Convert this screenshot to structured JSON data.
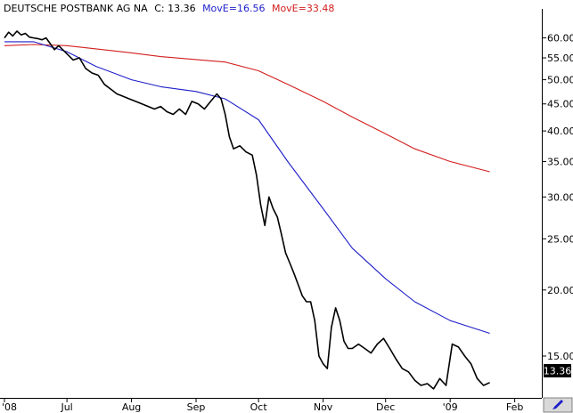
{
  "header": {
    "name": "DEUTSCHE POSTBANK AG NA",
    "close": "C: 13.36",
    "ma_short": "MovE=16.56",
    "ma_long": "MovE=33.48"
  },
  "last_price": "13.36",
  "chart_data": {
    "type": "line",
    "y_scale": "log",
    "ylim": [
      12.5,
      66
    ],
    "grid": false,
    "y_ticks": [
      15,
      20,
      25,
      30,
      35,
      40,
      45,
      50,
      55,
      60
    ],
    "y_tick_labels": [
      "15.00",
      "20.00",
      "25.00",
      "30.00",
      "35.00",
      "40.00",
      "45.00",
      "50.00",
      "55.00",
      "60.00"
    ],
    "xlim": [
      "2008-06-01",
      "2009-02-14"
    ],
    "x_ticks": [
      {
        "date": "2008-06-01",
        "label": "'08"
      },
      {
        "date": "2008-07-01",
        "label": "Jul"
      },
      {
        "date": "2008-08-01",
        "label": "Aug"
      },
      {
        "date": "2008-09-01",
        "label": "Sep"
      },
      {
        "date": "2008-10-01",
        "label": "Oct"
      },
      {
        "date": "2008-11-01",
        "label": "Nov"
      },
      {
        "date": "2008-12-01",
        "label": "Dec"
      },
      {
        "date": "2009-01-01",
        "label": "'09"
      },
      {
        "date": "2009-02-01",
        "label": "Feb"
      }
    ],
    "colors": {
      "price": "#000000",
      "ma_short": "#1e1ec8",
      "ma_long": "#d21e1e",
      "badge": "#000000"
    },
    "series": [
      {
        "name": "DEUTSCHE POSTBANK AG NA",
        "key": "price",
        "x": [
          "2008-06-01",
          "2008-06-03",
          "2008-06-05",
          "2008-06-07",
          "2008-06-09",
          "2008-06-11",
          "2008-06-13",
          "2008-06-15",
          "2008-06-17",
          "2008-06-19",
          "2008-06-21",
          "2008-06-23",
          "2008-06-25",
          "2008-06-27",
          "2008-06-29",
          "2008-07-01",
          "2008-07-04",
          "2008-07-07",
          "2008-07-10",
          "2008-07-13",
          "2008-07-16",
          "2008-07-19",
          "2008-07-22",
          "2008-07-25",
          "2008-07-28",
          "2008-07-31",
          "2008-08-03",
          "2008-08-06",
          "2008-08-09",
          "2008-08-12",
          "2008-08-15",
          "2008-08-18",
          "2008-08-21",
          "2008-08-24",
          "2008-08-27",
          "2008-08-30",
          "2008-09-02",
          "2008-09-05",
          "2008-09-08",
          "2008-09-11",
          "2008-09-13",
          "2008-09-15",
          "2008-09-17",
          "2008-09-19",
          "2008-09-22",
          "2008-09-25",
          "2008-09-28",
          "2008-09-30",
          "2008-10-02",
          "2008-10-04",
          "2008-10-06",
          "2008-10-08",
          "2008-10-10",
          "2008-10-12",
          "2008-10-14",
          "2008-10-16",
          "2008-10-18",
          "2008-10-20",
          "2008-10-22",
          "2008-10-24",
          "2008-10-26",
          "2008-10-28",
          "2008-10-30",
          "2008-11-01",
          "2008-11-03",
          "2008-11-05",
          "2008-11-07",
          "2008-11-09",
          "2008-11-11",
          "2008-11-13",
          "2008-11-15",
          "2008-11-18",
          "2008-11-21",
          "2008-11-24",
          "2008-11-27",
          "2008-11-30",
          "2008-12-03",
          "2008-12-06",
          "2008-12-09",
          "2008-12-12",
          "2008-12-15",
          "2008-12-18",
          "2008-12-21",
          "2008-12-24",
          "2008-12-27",
          "2008-12-30",
          "2009-01-02",
          "2009-01-05",
          "2009-01-08",
          "2009-01-11",
          "2009-01-14",
          "2009-01-17",
          "2009-01-20"
        ],
        "y": [
          60.0,
          61.5,
          60.5,
          61.8,
          60.8,
          61.2,
          60.2,
          60.0,
          59.8,
          59.5,
          60.0,
          58.5,
          57.0,
          58.0,
          57.0,
          56.0,
          54.5,
          55.0,
          52.5,
          51.5,
          51.0,
          49.0,
          48.0,
          47.0,
          46.5,
          46.0,
          45.5,
          45.0,
          44.5,
          44.0,
          44.5,
          43.5,
          43.0,
          44.0,
          43.0,
          45.5,
          45.0,
          44.0,
          45.5,
          47.0,
          46.0,
          43.0,
          39.0,
          37.0,
          37.5,
          36.5,
          36.0,
          33.0,
          29.0,
          26.5,
          30.0,
          28.5,
          27.5,
          25.5,
          23.5,
          22.5,
          21.5,
          20.5,
          19.5,
          19.0,
          19.0,
          17.5,
          15.0,
          14.5,
          14.2,
          17.0,
          18.5,
          17.5,
          16.0,
          15.5,
          15.5,
          15.8,
          15.5,
          15.2,
          15.8,
          16.2,
          15.5,
          14.8,
          14.2,
          14.0,
          13.5,
          13.2,
          13.3,
          13.0,
          13.6,
          13.2,
          15.8,
          15.6,
          15.0,
          14.5,
          13.6,
          13.2,
          13.36
        ]
      },
      {
        "name": "MovE=16.56",
        "key": "ma_short",
        "x": [
          "2008-06-01",
          "2008-06-15",
          "2008-07-01",
          "2008-07-15",
          "2008-08-01",
          "2008-08-15",
          "2008-09-01",
          "2008-09-15",
          "2008-10-01",
          "2008-10-15",
          "2008-11-01",
          "2008-11-15",
          "2008-12-01",
          "2008-12-15",
          "2009-01-01",
          "2009-01-20"
        ],
        "y": [
          59.0,
          59.0,
          56.5,
          53.0,
          50.0,
          48.5,
          47.5,
          46.0,
          42.0,
          35.0,
          28.5,
          24.0,
          21.0,
          19.0,
          17.5,
          16.56
        ]
      },
      {
        "name": "MovE=33.48",
        "key": "ma_long",
        "x": [
          "2008-06-01",
          "2008-06-15",
          "2008-07-01",
          "2008-07-15",
          "2008-08-01",
          "2008-08-15",
          "2008-09-01",
          "2008-09-15",
          "2008-10-01",
          "2008-10-15",
          "2008-11-01",
          "2008-11-15",
          "2008-12-01",
          "2008-12-15",
          "2009-01-01",
          "2009-01-20"
        ],
        "y": [
          58.0,
          58.3,
          58.0,
          57.2,
          56.2,
          55.3,
          54.6,
          54.0,
          52.0,
          49.0,
          45.5,
          42.5,
          39.5,
          37.0,
          35.0,
          33.48
        ]
      }
    ]
  }
}
